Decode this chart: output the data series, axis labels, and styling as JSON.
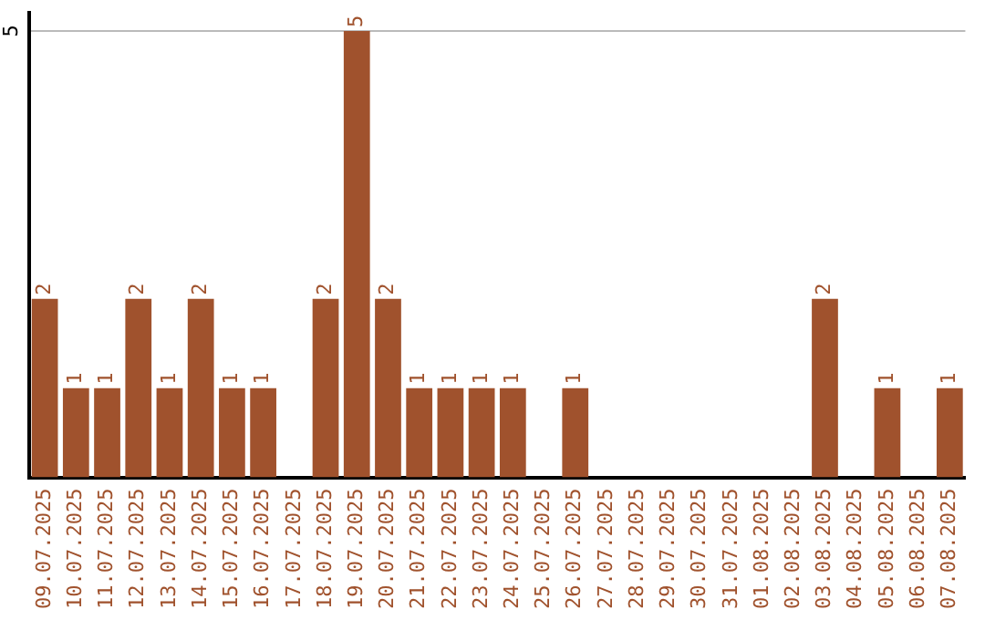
{
  "chart_data": {
    "type": "bar",
    "categories": [
      "09.07.2025",
      "10.07.2025",
      "11.07.2025",
      "12.07.2025",
      "13.07.2025",
      "14.07.2025",
      "15.07.2025",
      "16.07.2025",
      "17.07.2025",
      "18.07.2025",
      "19.07.2025",
      "20.07.2025",
      "21.07.2025",
      "22.07.2025",
      "23.07.2025",
      "24.07.2025",
      "25.07.2025",
      "26.07.2025",
      "27.07.2025",
      "28.07.2025",
      "29.07.2025",
      "30.07.2025",
      "31.07.2025",
      "01.08.2025",
      "02.08.2025",
      "03.08.2025",
      "04.08.2025",
      "05.08.2025",
      "06.08.2025",
      "07.08.2025"
    ],
    "values": [
      2,
      1,
      1,
      2,
      1,
      2,
      1,
      1,
      0,
      2,
      5,
      2,
      1,
      1,
      1,
      1,
      0,
      1,
      0,
      0,
      0,
      0,
      0,
      0,
      0,
      2,
      0,
      1,
      0,
      1
    ],
    "value_labels": [
      "2",
      "1",
      "1",
      "2",
      "1",
      "2",
      "1",
      "1",
      null,
      "2",
      "5",
      "2",
      "1",
      "1",
      "1",
      "1",
      null,
      "1",
      null,
      null,
      null,
      null,
      null,
      null,
      null,
      "2",
      null,
      "1",
      null,
      "1"
    ],
    "color": "#a0522d",
    "ylim": [
      0,
      5.2
    ],
    "yticks": [
      5
    ],
    "grid": "y",
    "legend": false
  }
}
